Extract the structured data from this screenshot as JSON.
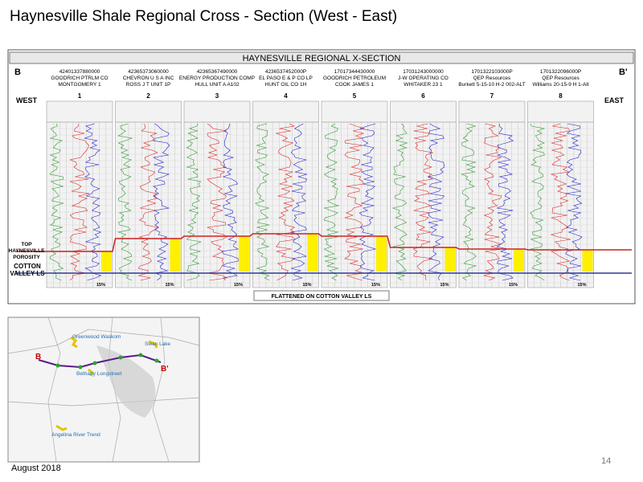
{
  "header": {
    "title": "Haynesville Shale Regional Cross - Section (West - East)"
  },
  "cross_section": {
    "title": "HAYNESVILLE REGIONAL X-SECTION",
    "left_label": "B",
    "right_label": "B'",
    "west": "WEST",
    "east": "EAST",
    "top_marker": [
      "TOP",
      "HAYNESVILLE",
      "POROSITY"
    ],
    "base_marker": [
      "COTTON",
      "VALLEY LS"
    ],
    "footnote": "FLATTENED ON COTTON VALLEY LS",
    "wells": [
      {
        "number": "1",
        "api": "42401337880000",
        "operator": "GOODRICH PTRLM CO",
        "name": "MONTGOMERY 1",
        "scale": "15%"
      },
      {
        "number": "2",
        "api": "42365373060000",
        "operator": "CHEVRON U S A INC",
        "name": "ROSS J T UNIT 1P",
        "scale": "15%"
      },
      {
        "number": "3",
        "api": "42365367490000",
        "operator": "ENERGY PRODUCTION COMP",
        "name": "HULL UNIT A A102",
        "scale": "15%"
      },
      {
        "number": "4",
        "api": "4236537452000P",
        "operator": "EL PASO E & P CO LP",
        "name": "HUNT OIL CO 1H",
        "scale": "15%"
      },
      {
        "number": "5",
        "api": "17017344430000",
        "operator": "GOODRICH PETROLEUM",
        "name": "COOK JAMES 1",
        "scale": "15%"
      },
      {
        "number": "6",
        "api": "17031243000000",
        "operator": "J-W OPERATING CO",
        "name": "WHITAKER 23 1",
        "scale": "15%"
      },
      {
        "number": "7",
        "api": "1701322103000P",
        "operator": "QEP Resources",
        "name": "Burkett 5-15-10 H-2 002-ALT",
        "scale": "15%"
      },
      {
        "number": "8",
        "api": "1701322096000P",
        "operator": "QEP Resources",
        "name": "Williams 20-15-9 H 1-Alt",
        "scale": "15%"
      }
    ]
  },
  "map": {
    "start": "B",
    "end": "B'",
    "labels": [
      "Greenwood Waskom",
      "Bethany Longstreet",
      "Swan Lake",
      "Angelina River Trend"
    ]
  },
  "footer": {
    "date": "August 2018",
    "page": "14"
  }
}
